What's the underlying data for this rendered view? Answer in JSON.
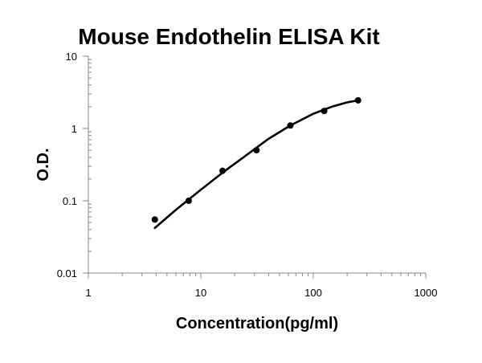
{
  "chart_data": {
    "type": "scatter",
    "title": "Mouse Endothelin ELISA Kit",
    "xlabel": "Concentration(pg/ml)",
    "ylabel": "O.D.",
    "x_scale": "log",
    "y_scale": "log",
    "xlim": [
      1,
      1000
    ],
    "ylim": [
      0.01,
      10
    ],
    "x_ticks": [
      "1",
      "10",
      "100",
      "1000"
    ],
    "y_ticks": [
      "10",
      "1",
      "0.1",
      "0.01"
    ],
    "grid": false,
    "legend": "none",
    "series": [
      {
        "x": [
          3.9,
          7.8,
          15.6,
          31.25,
          62.5,
          125,
          250
        ],
        "y": [
          0.055,
          0.1,
          0.26,
          0.5,
          1.1,
          1.75,
          2.45
        ],
        "marker": "circle",
        "color": "#000000"
      }
    ],
    "fit_curve": {
      "type": "polynomial",
      "x": [
        3.9,
        6,
        10,
        15.6,
        25,
        40,
        62.5,
        100,
        150,
        200,
        250
      ],
      "y": [
        0.042,
        0.075,
        0.142,
        0.245,
        0.42,
        0.72,
        1.1,
        1.6,
        2.03,
        2.3,
        2.45
      ],
      "color": "#000000"
    }
  }
}
